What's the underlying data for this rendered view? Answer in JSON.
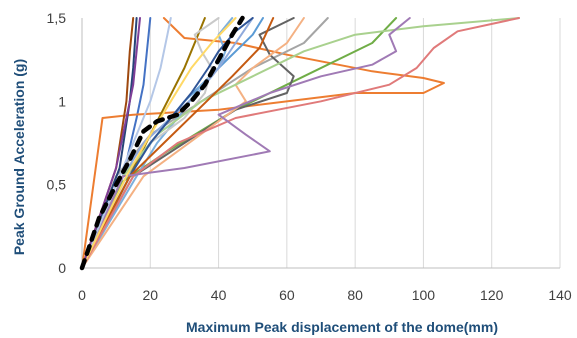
{
  "chart_data": {
    "type": "line",
    "title": "",
    "xlabel": "Maximum Peak displacement of the dome(mm)",
    "ylabel": "Peak Ground Acceleration (g)",
    "xlim": [
      0,
      140
    ],
    "ylim": [
      0,
      1.5
    ],
    "x_ticks": [
      "0",
      "20",
      "40",
      "60",
      "80",
      "100",
      "120",
      "140"
    ],
    "y_ticks": [
      "0",
      "0,5",
      "1",
      "1,5"
    ],
    "grid": "vertical",
    "legend": "none",
    "series": [
      {
        "color": "#4472c4",
        "width": 2,
        "points": [
          [
            0,
            0
          ],
          [
            12,
            0.55
          ],
          [
            16,
            0.9
          ],
          [
            18,
            1.1
          ],
          [
            19,
            1.3
          ],
          [
            20,
            1.5
          ]
        ]
      },
      {
        "color": "#ed7d31",
        "width": 2,
        "points": [
          [
            0,
            0
          ],
          [
            4,
            0.6
          ],
          [
            6,
            0.9
          ],
          [
            15,
            0.92
          ],
          [
            40,
            0.95
          ],
          [
            80,
            1.05
          ],
          [
            100,
            1.05
          ],
          [
            106,
            1.11
          ],
          [
            100,
            1.14
          ],
          [
            85,
            1.18
          ],
          [
            60,
            1.28
          ],
          [
            45,
            1.35
          ],
          [
            30,
            1.38
          ],
          [
            24,
            1.5
          ]
        ]
      },
      {
        "color": "#a5a5a5",
        "width": 2,
        "points": [
          [
            0,
            0
          ],
          [
            10,
            0.55
          ],
          [
            20,
            0.8
          ],
          [
            35,
            1.0
          ],
          [
            50,
            1.2
          ],
          [
            65,
            1.35
          ],
          [
            72,
            1.5
          ]
        ]
      },
      {
        "color": "#5b9bd5",
        "width": 2,
        "points": [
          [
            0,
            0
          ],
          [
            13,
            0.55
          ],
          [
            22,
            0.8
          ],
          [
            30,
            1.0
          ],
          [
            40,
            1.2
          ],
          [
            50,
            1.4
          ],
          [
            53,
            1.5
          ]
        ]
      },
      {
        "color": "#70ad47",
        "width": 2,
        "points": [
          [
            0,
            0
          ],
          [
            12,
            0.52
          ],
          [
            25,
            0.7
          ],
          [
            45,
            0.95
          ],
          [
            65,
            1.15
          ],
          [
            85,
            1.35
          ],
          [
            92,
            1.5
          ]
        ]
      },
      {
        "color": "#264478",
        "width": 2,
        "points": [
          [
            0,
            0
          ],
          [
            11,
            0.6
          ],
          [
            14,
            1.0
          ],
          [
            15,
            1.2
          ],
          [
            16,
            1.5
          ]
        ]
      },
      {
        "color": "#9e480e",
        "width": 2,
        "points": [
          [
            0,
            0
          ],
          [
            10,
            0.6
          ],
          [
            13,
            1.0
          ],
          [
            14,
            1.3
          ],
          [
            15,
            1.5
          ]
        ]
      },
      {
        "color": "#636363",
        "width": 2,
        "points": [
          [
            0,
            0
          ],
          [
            15,
            0.55
          ],
          [
            30,
            0.75
          ],
          [
            45,
            0.95
          ],
          [
            60,
            1.05
          ],
          [
            62,
            1.15
          ],
          [
            55,
            1.28
          ],
          [
            52,
            1.4
          ],
          [
            62,
            1.5
          ]
        ]
      },
      {
        "color": "#997300",
        "width": 2,
        "points": [
          [
            0,
            0
          ],
          [
            14,
            0.55
          ],
          [
            20,
            0.8
          ],
          [
            25,
            1.0
          ],
          [
            30,
            1.2
          ],
          [
            34,
            1.4
          ],
          [
            36,
            1.5
          ]
        ]
      },
      {
        "color": "#7cafdd",
        "width": 2,
        "points": [
          [
            0,
            0
          ],
          [
            16,
            0.55
          ],
          [
            22,
            0.75
          ],
          [
            28,
            0.9
          ],
          [
            35,
            1.1
          ],
          [
            40,
            1.2
          ],
          [
            42,
            1.3
          ],
          [
            40,
            1.4
          ],
          [
            44,
            1.5
          ]
        ]
      },
      {
        "color": "#f4b183",
        "width": 2,
        "points": [
          [
            0,
            0
          ],
          [
            18,
            0.55
          ],
          [
            28,
            0.7
          ],
          [
            38,
            0.85
          ],
          [
            48,
            1.0
          ],
          [
            45,
            1.1
          ],
          [
            50,
            1.2
          ],
          [
            60,
            1.35
          ],
          [
            65,
            1.5
          ]
        ]
      },
      {
        "color": "#c9c9c9",
        "width": 2,
        "points": [
          [
            0,
            0
          ],
          [
            12,
            0.55
          ],
          [
            20,
            0.75
          ],
          [
            30,
            0.9
          ],
          [
            36,
            1.05
          ],
          [
            38,
            1.2
          ],
          [
            35,
            1.3
          ],
          [
            33,
            1.4
          ],
          [
            40,
            1.5
          ]
        ]
      },
      {
        "color": "#8faadc",
        "width": 2,
        "points": [
          [
            0,
            0
          ],
          [
            12,
            0.55
          ],
          [
            18,
            0.75
          ],
          [
            26,
            0.9
          ],
          [
            34,
            1.05
          ],
          [
            40,
            1.2
          ],
          [
            45,
            1.35
          ],
          [
            50,
            1.5
          ]
        ]
      },
      {
        "color": "#a9d18e",
        "width": 2,
        "points": [
          [
            0,
            0
          ],
          [
            12,
            0.55
          ],
          [
            22,
            0.8
          ],
          [
            35,
            1.0
          ],
          [
            50,
            1.15
          ],
          [
            65,
            1.3
          ],
          [
            80,
            1.4
          ],
          [
            100,
            1.45
          ],
          [
            128,
            1.5
          ]
        ]
      },
      {
        "color": "#2f5597",
        "width": 2,
        "points": [
          [
            0,
            0
          ],
          [
            14,
            0.55
          ],
          [
            20,
            0.75
          ],
          [
            26,
            0.9
          ],
          [
            32,
            1.05
          ],
          [
            37,
            1.2
          ],
          [
            40,
            1.3
          ],
          [
            45,
            1.42
          ],
          [
            50,
            1.5
          ]
        ]
      },
      {
        "color": "#c55a11",
        "width": 2,
        "points": [
          [
            0,
            0
          ],
          [
            14,
            0.55
          ],
          [
            24,
            0.75
          ],
          [
            34,
            0.95
          ],
          [
            44,
            1.15
          ],
          [
            52,
            1.32
          ],
          [
            56,
            1.5
          ]
        ]
      },
      {
        "color": "#e07a7a",
        "width": 2,
        "points": [
          [
            0,
            0
          ],
          [
            15,
            0.55
          ],
          [
            28,
            0.75
          ],
          [
            45,
            0.9
          ],
          [
            70,
            1.0
          ],
          [
            90,
            1.1
          ],
          [
            98,
            1.2
          ],
          [
            103,
            1.32
          ],
          [
            110,
            1.42
          ],
          [
            128,
            1.5
          ]
        ]
      },
      {
        "color": "#a07ab5",
        "width": 2,
        "points": [
          [
            0,
            0
          ],
          [
            12,
            0.55
          ],
          [
            30,
            0.6
          ],
          [
            50,
            0.68
          ],
          [
            55,
            0.7
          ],
          [
            48,
            0.8
          ],
          [
            40,
            0.92
          ],
          [
            55,
            1.05
          ],
          [
            70,
            1.15
          ],
          [
            85,
            1.22
          ],
          [
            92,
            1.3
          ],
          [
            90,
            1.4
          ],
          [
            96,
            1.5
          ]
        ]
      },
      {
        "color": "#b4c7e7",
        "width": 2,
        "points": [
          [
            0,
            0
          ],
          [
            11,
            0.55
          ],
          [
            16,
            0.8
          ],
          [
            20,
            1.0
          ],
          [
            23,
            1.2
          ],
          [
            25,
            1.4
          ],
          [
            26,
            1.5
          ]
        ]
      },
      {
        "color": "#ffd966",
        "width": 2,
        "points": [
          [
            0,
            0
          ],
          [
            13,
            0.55
          ],
          [
            20,
            0.8
          ],
          [
            26,
            1.0
          ],
          [
            32,
            1.2
          ],
          [
            38,
            1.35
          ],
          [
            45,
            1.5
          ]
        ]
      },
      {
        "color": "#7f3f98",
        "width": 2,
        "points": [
          [
            0,
            0
          ],
          [
            10,
            0.6
          ],
          [
            13,
            0.9
          ],
          [
            15,
            1.1
          ],
          [
            16,
            1.3
          ],
          [
            17,
            1.5
          ]
        ]
      },
      {
        "color": "#000000",
        "width": 4.5,
        "dashed": true,
        "points": [
          [
            0,
            0
          ],
          [
            5,
            0.3
          ],
          [
            10,
            0.5
          ],
          [
            14,
            0.65
          ],
          [
            18,
            0.82
          ],
          [
            22,
            0.88
          ],
          [
            28,
            0.92
          ],
          [
            32,
            1.0
          ],
          [
            36,
            1.1
          ],
          [
            40,
            1.25
          ],
          [
            44,
            1.4
          ],
          [
            47,
            1.5
          ]
        ]
      }
    ]
  }
}
